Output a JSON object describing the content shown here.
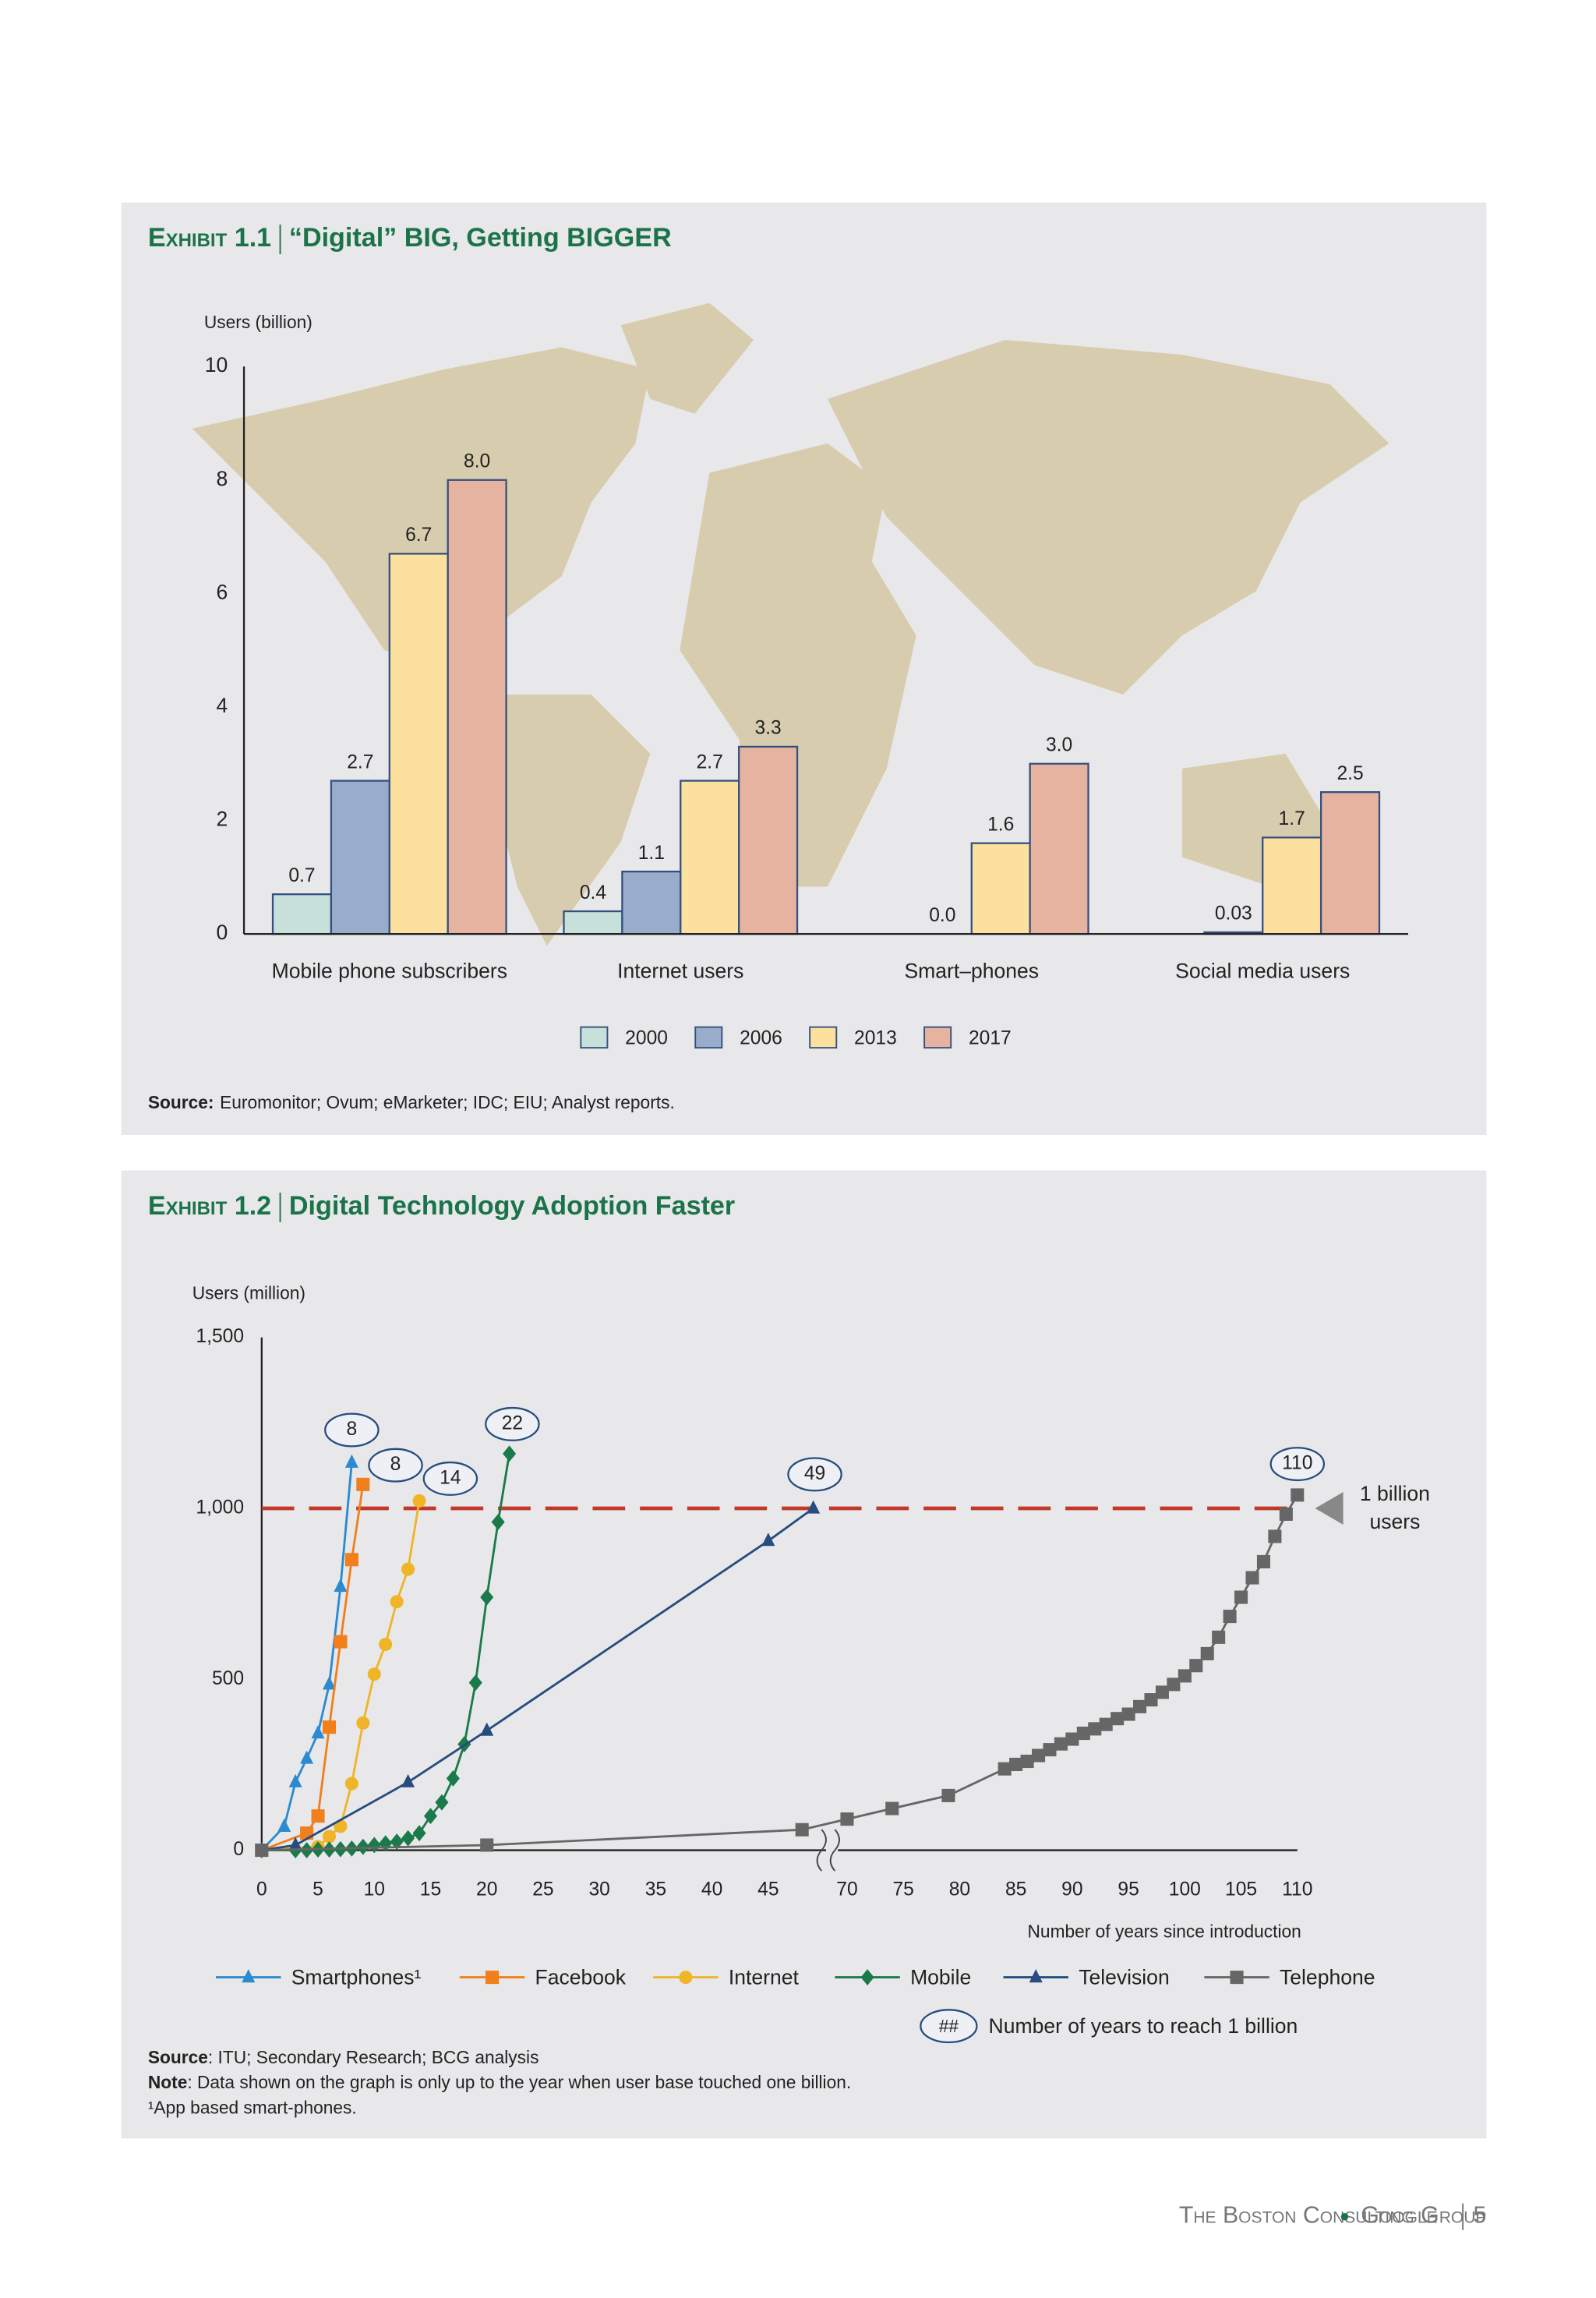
{
  "chart_data": [
    {
      "type": "bar",
      "label": "Exhibit 1.1",
      "title": "“Digital” BIG, Getting BIGGER",
      "y_label": "Users (billion)",
      "categories": [
        "Mobile phone subscribers",
        "Internet users",
        "Smart–phones",
        "Social media users"
      ],
      "series": [
        {
          "name": "2000",
          "color": "#c7e0da",
          "values": [
            0.7,
            0.4,
            null,
            null
          ],
          "value_labels": [
            "0.7",
            "0.4",
            null,
            null
          ]
        },
        {
          "name": "2006",
          "color": "#9aaccb",
          "values": [
            2.7,
            1.1,
            0,
            0.03
          ],
          "value_labels": [
            "2.7",
            "1.1",
            "0.0",
            "0.03"
          ]
        },
        {
          "name": "2013",
          "color": "#fbe09e",
          "values": [
            6.7,
            2.7,
            1.6,
            1.7
          ],
          "value_labels": [
            "6.7",
            "2.7",
            "1.6",
            "1.7"
          ]
        },
        {
          "name": "2017",
          "color": "#e5b3a0",
          "values": [
            8,
            3.3,
            3,
            2.5
          ],
          "value_labels": [
            "8.0",
            "3.3",
            "3.0",
            "2.5"
          ]
        }
      ],
      "edge_color": "#34507f",
      "ylim": [
        0,
        10
      ],
      "yticks": [
        0,
        2,
        4,
        6,
        8,
        10
      ],
      "grid": false,
      "source_label": "Source:",
      "source": "Euromonitor; Ovum; eMarketer; IDC; EIU; Analyst reports."
    },
    {
      "type": "line",
      "label": "Exhibit 1.2",
      "title": "Digital Technology Adoption Faster",
      "y_label": "Users (million)",
      "x_label": "Number of years since introduction",
      "xlim": [
        0,
        110
      ],
      "x_break": [
        50,
        68
      ],
      "xticks": [
        0,
        5,
        10,
        15,
        20,
        25,
        30,
        35,
        40,
        45,
        70,
        75,
        80,
        85,
        90,
        95,
        100,
        105,
        110
      ],
      "ylim": [
        0,
        1500
      ],
      "yticks": [
        0,
        500,
        {
          "value": 1000,
          "label": "1,000"
        },
        {
          "value": 1500,
          "label": "1,500"
        }
      ],
      "grid": false,
      "series": [
        {
          "name": "Smartphones¹",
          "color": "#2b8ad0",
          "marker": "triangle",
          "label": "8",
          "x": [
            0,
            2,
            3,
            4,
            5,
            6,
            7,
            8
          ],
          "values": [
            0,
            69,
            199,
            268,
            342,
            485,
            771,
            1134
          ]
        },
        {
          "name": "Facebook",
          "color": "#f07f1c",
          "marker": "square",
          "label": "8",
          "x": [
            0,
            4,
            5,
            6,
            7,
            8,
            9
          ],
          "values": [
            0,
            50,
            100,
            360,
            610,
            850,
            1070
          ]
        },
        {
          "name": "Internet",
          "color": "#f0b429",
          "marker": "circle",
          "label": "14",
          "x": [
            0,
            5,
            6,
            7,
            8,
            9,
            10,
            11,
            12,
            13,
            14
          ],
          "values": [
            0,
            10,
            40,
            70,
            195,
            372,
            515,
            602,
            727,
            822,
            1022
          ]
        },
        {
          "name": "Mobile",
          "color": "#1a7a4a",
          "marker": "diamond",
          "label": "22",
          "x": [
            0,
            3,
            4,
            5,
            6,
            7,
            8,
            9,
            10,
            11,
            12,
            13,
            14,
            15,
            16,
            17,
            18,
            19,
            20,
            21,
            22
          ],
          "values": [
            0,
            0,
            0,
            2,
            2,
            3,
            5,
            10,
            15,
            20,
            25,
            35,
            50,
            100,
            140,
            210,
            310,
            490,
            740,
            960,
            1160
          ]
        },
        {
          "name": "Television",
          "color": "#264d7e",
          "marker": "triangle",
          "label": "49",
          "x": [
            0,
            3,
            13,
            20,
            45,
            49
          ],
          "values": [
            0,
            15,
            199,
            350,
            905,
            1000
          ]
        },
        {
          "name": "Telephone",
          "color": "#666666",
          "marker": "square",
          "label": "110",
          "x": [
            0,
            20,
            48,
            70,
            74,
            79,
            84,
            85,
            86,
            87,
            88,
            89,
            90,
            91,
            92,
            93,
            94,
            95,
            96,
            97,
            98,
            99,
            100,
            101,
            102,
            103,
            104,
            105,
            106,
            107,
            108,
            109,
            110
          ],
          "values": [
            0,
            15,
            60,
            91,
            122,
            160,
            238,
            251,
            260,
            277,
            294,
            311,
            325,
            342,
            355,
            368,
            385,
            398,
            420,
            440,
            462,
            485,
            510,
            540,
            575,
            623,
            684,
            740,
            797,
            844,
            918,
            983,
            1039
          ]
        }
      ],
      "reference_line": {
        "value": 1000,
        "label": [
          "1 billion",
          "users"
        ],
        "color": "#c0392b"
      },
      "legend_note": {
        "symbol": "##",
        "label": "Number of years to reach 1 billion"
      },
      "notes": [
        {
          "label": "Source",
          "text": ": ITU; Secondary Research; BCG analysis"
        },
        {
          "label": "Note",
          "text": ": Data shown on the graph is only up to the year when user base touched one billion."
        },
        {
          "label": "",
          "text": "¹App based smart-phones."
        }
      ]
    }
  ],
  "footer": {
    "org": "The Boston Consulting Group",
    "brand": "Google",
    "page": "5"
  }
}
